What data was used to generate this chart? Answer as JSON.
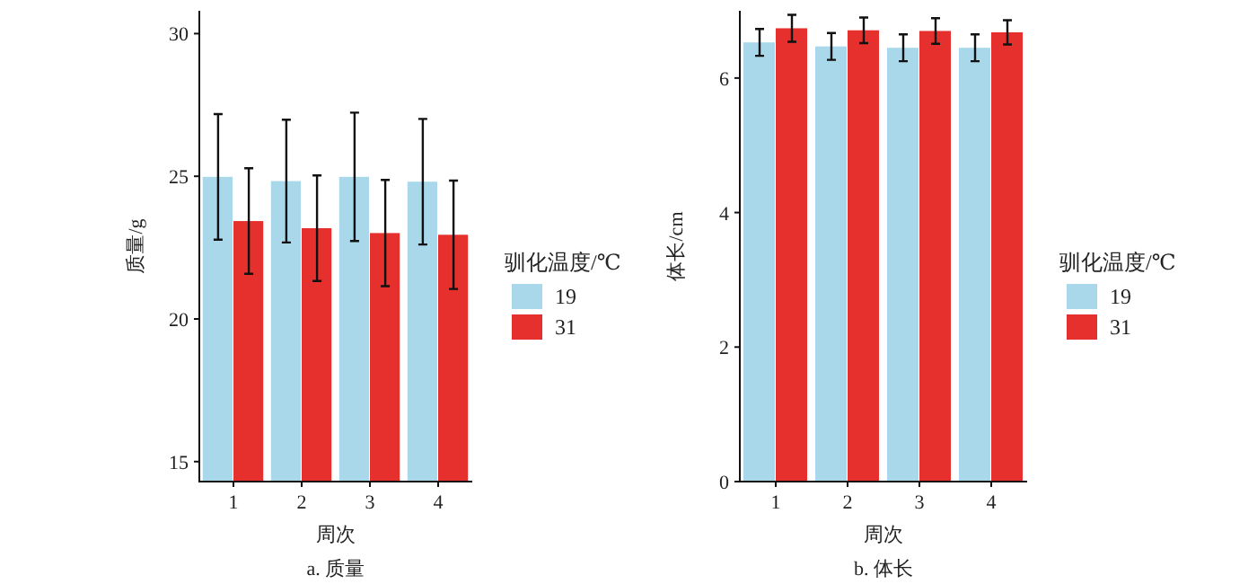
{
  "chart_data": [
    {
      "type": "bar",
      "title": "a. 质量",
      "xlabel": "周次",
      "ylabel": "质量/g",
      "legend_title": "驯化温度/℃",
      "legend": "right",
      "categories": [
        "1",
        "2",
        "3",
        "4"
      ],
      "ylim": [
        14.3,
        30.8
      ],
      "yticks": [
        15,
        20,
        25,
        30
      ],
      "series": [
        {
          "name": "19",
          "color": "#a8d8ea",
          "values": [
            24.98,
            24.83,
            24.98,
            24.81
          ],
          "errors": [
            2.2,
            2.15,
            2.25,
            2.2
          ]
        },
        {
          "name": "31",
          "color": "#e5302d",
          "values": [
            23.43,
            23.18,
            23.01,
            22.95
          ],
          "errors": [
            1.85,
            1.85,
            1.86,
            1.9
          ]
        }
      ]
    },
    {
      "type": "bar",
      "title": "b. 体长",
      "xlabel": "周次",
      "ylabel": "体长/cm",
      "legend_title": "驯化温度/℃",
      "legend": "right",
      "categories": [
        "1",
        "2",
        "3",
        "4"
      ],
      "ylim": [
        0,
        7
      ],
      "yticks": [
        0,
        2,
        4,
        6
      ],
      "series": [
        {
          "name": "19",
          "color": "#a8d8ea",
          "values": [
            6.53,
            6.47,
            6.45,
            6.45
          ],
          "errors": [
            0.2,
            0.2,
            0.2,
            0.2
          ]
        },
        {
          "name": "31",
          "color": "#e5302d",
          "values": [
            6.74,
            6.71,
            6.7,
            6.68
          ],
          "errors": [
            0.2,
            0.19,
            0.19,
            0.18
          ]
        }
      ]
    }
  ]
}
